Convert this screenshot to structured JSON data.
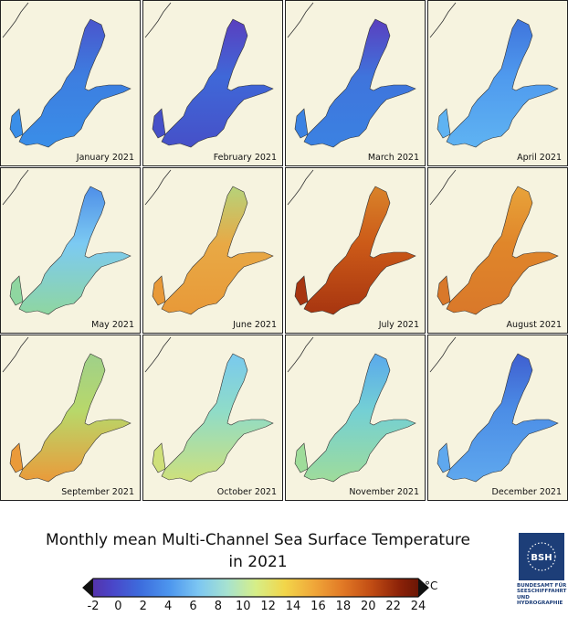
{
  "panels": [
    {
      "label": "January 2021",
      "fill": "#3d7ee0",
      "north": "#4a55cc",
      "south": "#3a8ee8"
    },
    {
      "label": "February 2021",
      "fill": "#3f68d8",
      "north": "#5a3fbf",
      "south": "#4650c8"
    },
    {
      "label": "March 2021",
      "fill": "#3f74dc",
      "north": "#5a3fbf",
      "south": "#3b82e2"
    },
    {
      "label": "April 2021",
      "fill": "#4f9aee",
      "north": "#3f74dc",
      "south": "#5fb3f2"
    },
    {
      "label": "May 2021",
      "fill": "#7ccaf2",
      "north": "#4f8fe8",
      "south": "#8fd6a0"
    },
    {
      "label": "June 2021",
      "fill": "#e8a945",
      "north": "#b6d37a",
      "south": "#e89938"
    },
    {
      "label": "July 2021",
      "fill": "#cc5a18",
      "north": "#d9832a",
      "south": "#a73510"
    },
    {
      "label": "August 2021",
      "fill": "#e0862a",
      "north": "#e8a33a",
      "south": "#d9782a"
    },
    {
      "label": "September 2021",
      "fill": "#b8d86a",
      "north": "#9fd08a",
      "south": "#ea9a3a"
    },
    {
      "label": "October 2021",
      "fill": "#8fdcc8",
      "north": "#79c9ee",
      "south": "#cfe07a"
    },
    {
      "label": "November 2021",
      "fill": "#74d0d4",
      "north": "#5aa9ec",
      "south": "#9fdc9a"
    },
    {
      "label": "December 2021",
      "fill": "#4c8ee6",
      "north": "#3f5fd0",
      "south": "#5fa8ee"
    }
  ],
  "title_line1": "Monthly mean Multi-Channel Sea Surface Temperature",
  "title_line2": "in 2021",
  "colorbar": {
    "ticks": [
      "-2",
      "0",
      "2",
      "4",
      "6",
      "8",
      "10",
      "12",
      "14",
      "16",
      "18",
      "20",
      "22",
      "24"
    ],
    "unit": "°C",
    "colors": [
      "#5a2a9c",
      "#4a45c8",
      "#3d6ddd",
      "#4d96ee",
      "#7cc6f2",
      "#a6e2d0",
      "#d6ee88",
      "#f2d64a",
      "#f0a83a",
      "#e27a26",
      "#c24d14",
      "#8c2208",
      "#5a1004"
    ]
  },
  "logo": {
    "mark": "BSH",
    "lines": [
      "BUNDESAMT FÜR",
      "SEESCHIFFFAHRT",
      "UND",
      "HYDROGRAPHIE"
    ]
  }
}
